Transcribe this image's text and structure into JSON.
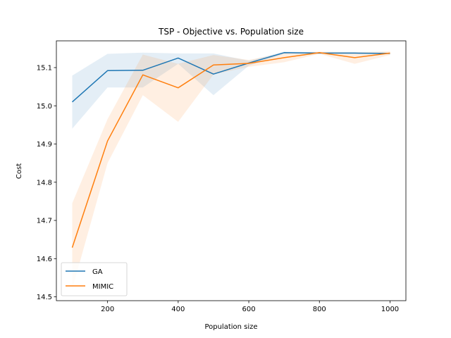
{
  "chart_data": {
    "type": "line",
    "title": "TSP - Objective vs. Population size",
    "xlabel": "Population size",
    "ylabel": "Cost",
    "xlim": [
      55,
      1045
    ],
    "ylim": [
      14.49,
      15.17
    ],
    "xticks": [
      200,
      400,
      600,
      800,
      1000
    ],
    "yticks": [
      14.5,
      14.6,
      14.7,
      14.8,
      14.9,
      15.0,
      15.1
    ],
    "ytick_labels": [
      "14.5",
      "14.6",
      "14.7",
      "14.8",
      "14.9",
      "15.0",
      "15.1"
    ],
    "grid": false,
    "legend": "lower-left",
    "x": [
      100,
      200,
      300,
      400,
      500,
      600,
      700,
      800,
      900,
      1000
    ],
    "series": [
      {
        "name": "GA",
        "color": "#1f77b4",
        "values": [
          15.01,
          15.092,
          15.093,
          15.125,
          15.083,
          15.112,
          15.139,
          15.138,
          15.138,
          15.137
        ],
        "band_low": [
          14.94,
          15.048,
          15.048,
          15.11,
          15.028,
          15.105,
          15.136,
          15.136,
          15.136,
          15.135
        ],
        "band_high": [
          15.079,
          15.136,
          15.139,
          15.137,
          15.137,
          15.118,
          15.142,
          15.14,
          15.14,
          15.139
        ]
      },
      {
        "name": "MIMIC",
        "color": "#ff7f0e",
        "values": [
          14.629,
          14.908,
          15.081,
          15.047,
          15.107,
          15.111,
          15.126,
          15.139,
          15.126,
          15.138
        ],
        "band_low": [
          14.52,
          14.85,
          15.028,
          14.958,
          15.082,
          15.102,
          15.114,
          15.136,
          15.11,
          15.133
        ],
        "band_high": [
          14.745,
          14.965,
          15.134,
          15.11,
          15.133,
          15.12,
          15.138,
          15.142,
          15.14,
          15.143
        ]
      }
    ]
  }
}
